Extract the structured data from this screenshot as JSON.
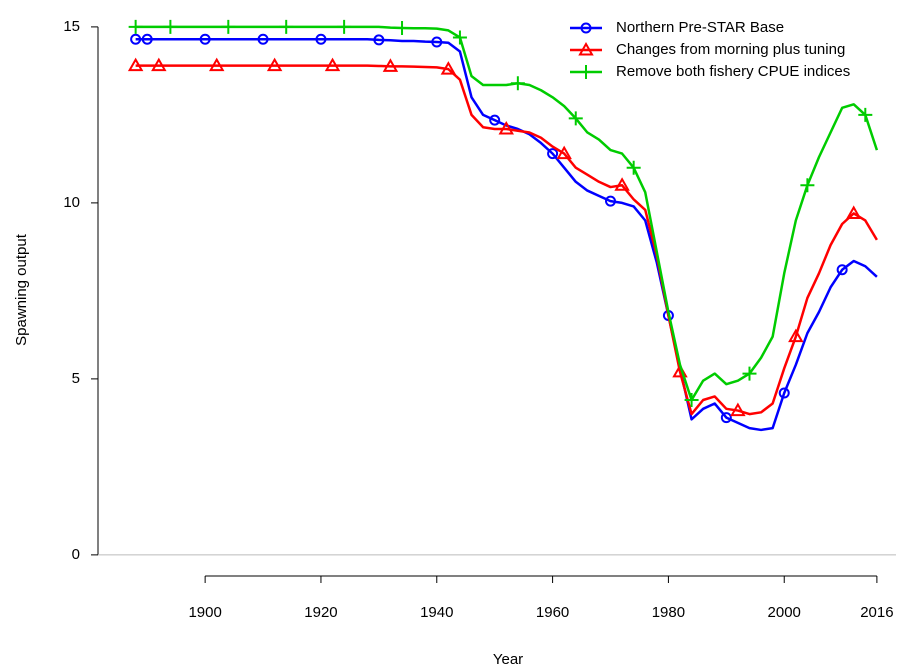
{
  "chart_data": {
    "type": "line",
    "xlabel": "Year",
    "ylabel": "Spawning output",
    "xlim": [
      1881.5,
      2019.3
    ],
    "ylim": [
      -0.6,
      15.48
    ],
    "xticks": [
      1900,
      1920,
      1940,
      1960,
      1980,
      2000,
      2016
    ],
    "yticks": [
      0,
      5,
      10,
      15
    ],
    "reference_line": 0,
    "legend": "top-right",
    "markers": true,
    "x": [
      1888,
      1890,
      1892,
      1894,
      1896,
      1898,
      1900,
      1902,
      1904,
      1906,
      1908,
      1910,
      1912,
      1914,
      1916,
      1918,
      1920,
      1922,
      1924,
      1926,
      1928,
      1930,
      1932,
      1934,
      1936,
      1938,
      1940,
      1942,
      1944,
      1946,
      1948,
      1950,
      1952,
      1954,
      1956,
      1958,
      1960,
      1962,
      1964,
      1966,
      1968,
      1970,
      1972,
      1974,
      1976,
      1978,
      1980,
      1982,
      1984,
      1986,
      1988,
      1990,
      1992,
      1994,
      1996,
      1998,
      2000,
      2002,
      2004,
      2006,
      2008,
      2010,
      2012,
      2014,
      2016
    ],
    "series": [
      {
        "name": "Northern Pre-STAR Base",
        "color": "#0000ff",
        "marker": "circle",
        "values": [
          14.65,
          14.65,
          14.65,
          14.65,
          14.65,
          14.65,
          14.65,
          14.65,
          14.65,
          14.65,
          14.65,
          14.65,
          14.65,
          14.65,
          14.65,
          14.65,
          14.65,
          14.65,
          14.65,
          14.65,
          14.65,
          14.63,
          14.62,
          14.6,
          14.6,
          14.58,
          14.57,
          14.55,
          14.3,
          13.0,
          12.5,
          12.35,
          12.2,
          12.1,
          11.95,
          11.7,
          11.4,
          11.0,
          10.6,
          10.35,
          10.2,
          10.05,
          10.0,
          9.9,
          9.5,
          8.3,
          6.8,
          5.3,
          3.85,
          4.15,
          4.3,
          3.9,
          3.75,
          3.6,
          3.55,
          3.6,
          4.6,
          5.4,
          6.3,
          6.9,
          7.6,
          8.1,
          8.35,
          8.2,
          7.9
        ]
      },
      {
        "name": "Changes from morning plus tuning",
        "color": "#ff0000",
        "marker": "triangle",
        "values": [
          13.9,
          13.9,
          13.9,
          13.9,
          13.9,
          13.9,
          13.9,
          13.9,
          13.9,
          13.9,
          13.9,
          13.9,
          13.9,
          13.9,
          13.9,
          13.9,
          13.9,
          13.9,
          13.9,
          13.9,
          13.9,
          13.89,
          13.88,
          13.88,
          13.87,
          13.86,
          13.85,
          13.8,
          13.5,
          12.5,
          12.15,
          12.1,
          12.1,
          12.05,
          12.0,
          11.85,
          11.6,
          11.4,
          11.0,
          10.8,
          10.6,
          10.45,
          10.5,
          10.1,
          9.8,
          8.5,
          6.8,
          5.2,
          4.0,
          4.4,
          4.5,
          4.15,
          4.1,
          4.0,
          4.05,
          4.3,
          5.3,
          6.2,
          7.3,
          8.0,
          8.8,
          9.4,
          9.7,
          9.5,
          8.95
        ]
      },
      {
        "name": "Remove both fishery CPUE indices",
        "color": "#00cc00",
        "marker": "plus",
        "values": [
          15.0,
          15.0,
          15.0,
          15.0,
          15.0,
          15.0,
          15.0,
          15.0,
          15.0,
          15.0,
          15.0,
          15.0,
          15.0,
          15.0,
          15.0,
          15.0,
          15.0,
          15.0,
          15.0,
          15.0,
          15.0,
          15.0,
          14.98,
          14.97,
          14.96,
          14.96,
          14.95,
          14.9,
          14.7,
          13.6,
          13.35,
          13.35,
          13.35,
          13.4,
          13.35,
          13.2,
          13.0,
          12.75,
          12.4,
          12.0,
          11.8,
          11.5,
          11.4,
          11.0,
          10.3,
          8.6,
          6.9,
          5.4,
          4.4,
          4.95,
          5.15,
          4.85,
          4.95,
          5.15,
          5.6,
          6.2,
          8.0,
          9.5,
          10.5,
          11.3,
          12.0,
          12.7,
          12.8,
          12.5,
          11.5
        ]
      }
    ]
  }
}
